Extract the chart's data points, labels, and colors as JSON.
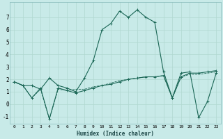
{
  "xlabel": "Humidex (Indice chaleur)",
  "xlim": [
    -0.5,
    23.5
  ],
  "ylim": [
    -1.6,
    8.2
  ],
  "yticks": [
    -1,
    0,
    1,
    2,
    3,
    4,
    5,
    6,
    7
  ],
  "xticks": [
    0,
    1,
    2,
    3,
    4,
    5,
    6,
    7,
    8,
    9,
    10,
    11,
    12,
    13,
    14,
    15,
    16,
    17,
    18,
    19,
    20,
    21,
    22,
    23
  ],
  "bg_color": "#c8eae8",
  "grid_color": "#b0d8d0",
  "line_color": "#1a6655",
  "series1_x": [
    0,
    1,
    2,
    3,
    4,
    5,
    6,
    7,
    8,
    9,
    10,
    11,
    12,
    13,
    14,
    15,
    16,
    17,
    18,
    19,
    20,
    21,
    22,
    23
  ],
  "series1_y": [
    1.8,
    1.5,
    1.5,
    1.2,
    2.1,
    1.5,
    1.3,
    1.0,
    2.1,
    3.5,
    6.0,
    6.5,
    7.5,
    7.0,
    7.6,
    7.0,
    6.6,
    2.6,
    0.5,
    2.5,
    2.6,
    -1.1,
    0.2,
    2.5
  ],
  "series2_x": [
    0,
    1,
    2,
    3,
    4,
    5,
    6,
    7,
    8,
    9,
    10,
    11,
    12,
    13,
    14,
    15,
    16,
    17,
    18,
    19,
    20,
    21,
    22,
    23
  ],
  "series2_y": [
    1.8,
    1.5,
    0.5,
    1.3,
    -1.2,
    1.3,
    1.1,
    0.9,
    1.1,
    1.3,
    1.5,
    1.6,
    1.8,
    2.0,
    2.1,
    2.2,
    2.2,
    2.3,
    0.5,
    2.2,
    2.5,
    2.5,
    2.6,
    2.7
  ],
  "series3_x": [
    0,
    1,
    2,
    3,
    4,
    5,
    6,
    7,
    8,
    9,
    10,
    11,
    12,
    13,
    14,
    15,
    16,
    17,
    18,
    19,
    20,
    21,
    22,
    23
  ],
  "series3_y": [
    1.8,
    1.5,
    0.5,
    1.2,
    -1.2,
    1.2,
    1.1,
    1.2,
    1.2,
    1.4,
    1.5,
    1.7,
    1.9,
    2.0,
    2.1,
    2.2,
    2.2,
    2.3,
    0.5,
    2.2,
    2.4,
    2.4,
    2.5,
    2.6
  ]
}
